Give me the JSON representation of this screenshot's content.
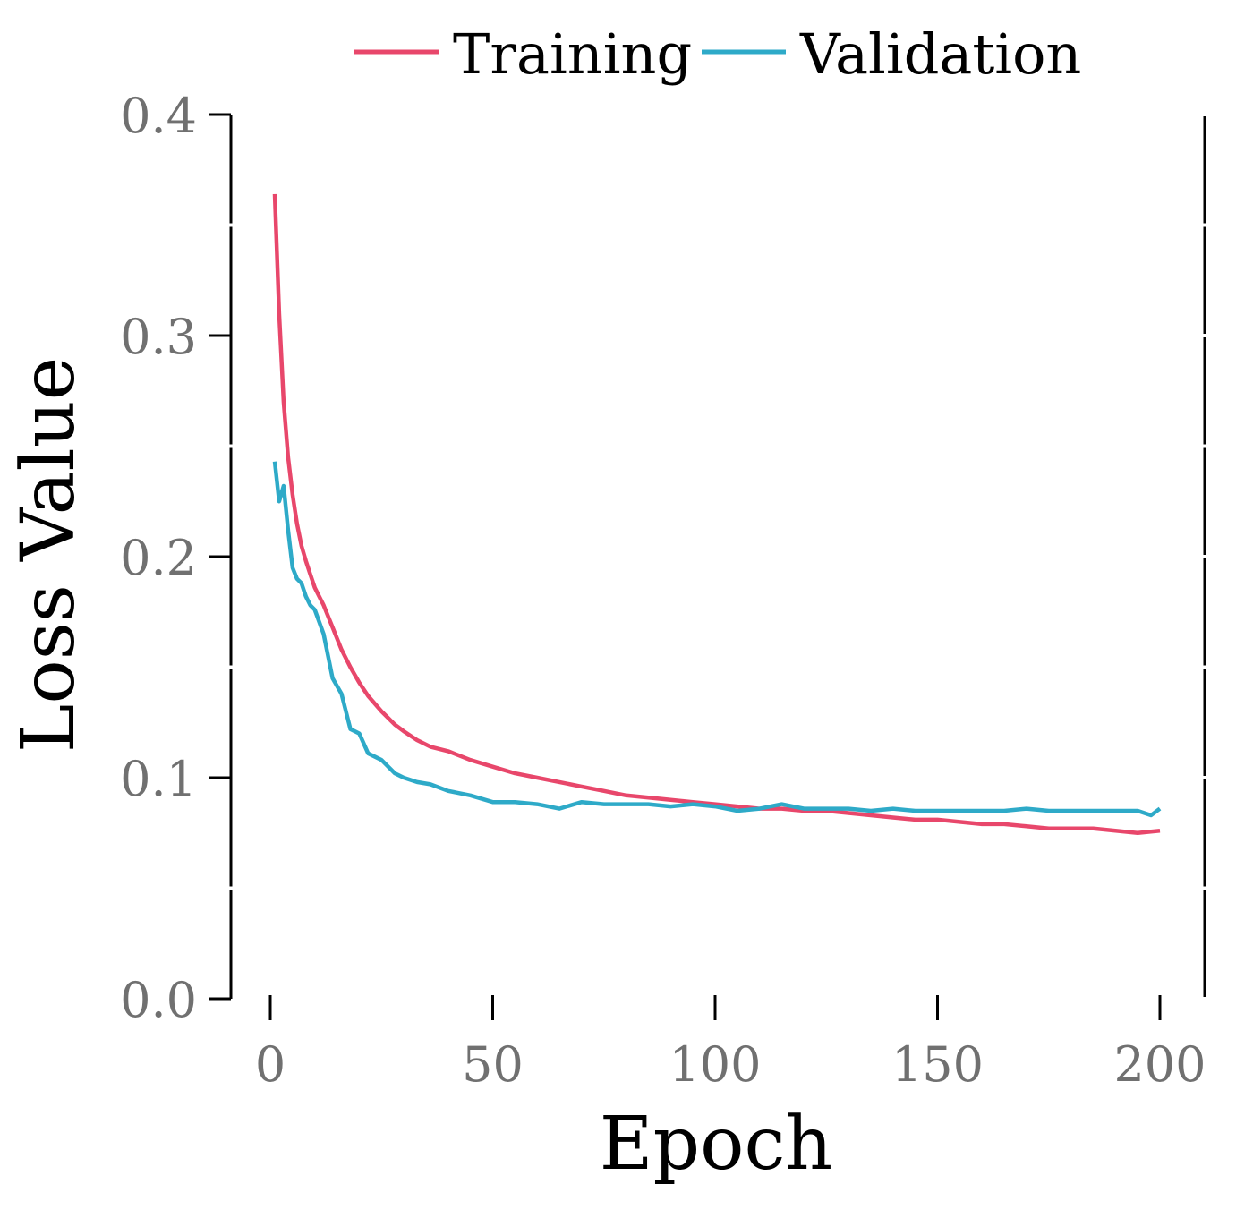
{
  "chart_data": {
    "type": "line",
    "title": "",
    "xlabel": "Epoch",
    "ylabel": "Loss Value",
    "xlim": [
      -8,
      210
    ],
    "ylim": [
      0.0,
      0.4
    ],
    "xticks": [
      0,
      50,
      100,
      150,
      200
    ],
    "xtick_labels": [
      "0",
      "50",
      "100",
      "150",
      "200"
    ],
    "yticks": [
      0.0,
      0.1,
      0.2,
      0.3,
      0.4
    ],
    "ytick_labels": [
      "0.0",
      "0.1",
      "0.2",
      "0.3",
      "0.4"
    ],
    "y_minor_ticks": [
      0.05,
      0.15,
      0.25,
      0.35
    ],
    "grid": false,
    "legend_position": "top-center",
    "series": [
      {
        "name": "Training",
        "color": "#e8476b",
        "x": [
          1,
          2,
          3,
          4,
          5,
          6,
          7,
          8,
          9,
          10,
          12,
          14,
          16,
          18,
          20,
          22,
          25,
          28,
          30,
          33,
          36,
          40,
          45,
          50,
          55,
          60,
          65,
          70,
          75,
          80,
          85,
          90,
          95,
          100,
          105,
          110,
          115,
          120,
          125,
          130,
          135,
          140,
          145,
          150,
          155,
          160,
          165,
          170,
          175,
          180,
          185,
          190,
          195,
          200
        ],
        "values": [
          0.364,
          0.31,
          0.27,
          0.245,
          0.228,
          0.215,
          0.205,
          0.198,
          0.192,
          0.186,
          0.178,
          0.168,
          0.158,
          0.15,
          0.143,
          0.137,
          0.13,
          0.124,
          0.121,
          0.117,
          0.114,
          0.112,
          0.108,
          0.105,
          0.102,
          0.1,
          0.098,
          0.096,
          0.094,
          0.092,
          0.091,
          0.09,
          0.089,
          0.088,
          0.087,
          0.086,
          0.086,
          0.085,
          0.085,
          0.084,
          0.083,
          0.082,
          0.081,
          0.081,
          0.08,
          0.079,
          0.079,
          0.078,
          0.077,
          0.077,
          0.077,
          0.076,
          0.075,
          0.076
        ]
      },
      {
        "name": "Validation",
        "color": "#2eaac8",
        "x": [
          1,
          2,
          3,
          4,
          5,
          6,
          7,
          8,
          9,
          10,
          12,
          14,
          16,
          18,
          20,
          22,
          25,
          28,
          30,
          33,
          36,
          40,
          45,
          50,
          55,
          60,
          65,
          70,
          75,
          80,
          85,
          90,
          95,
          100,
          105,
          110,
          115,
          120,
          125,
          130,
          135,
          140,
          145,
          150,
          155,
          160,
          165,
          170,
          175,
          180,
          185,
          190,
          195,
          198,
          200
        ],
        "values": [
          0.243,
          0.225,
          0.232,
          0.212,
          0.195,
          0.19,
          0.188,
          0.182,
          0.178,
          0.176,
          0.165,
          0.145,
          0.138,
          0.122,
          0.12,
          0.111,
          0.108,
          0.102,
          0.1,
          0.098,
          0.097,
          0.094,
          0.092,
          0.089,
          0.089,
          0.088,
          0.086,
          0.089,
          0.088,
          0.088,
          0.088,
          0.087,
          0.088,
          0.087,
          0.085,
          0.086,
          0.088,
          0.086,
          0.086,
          0.086,
          0.085,
          0.086,
          0.085,
          0.085,
          0.085,
          0.085,
          0.085,
          0.086,
          0.085,
          0.085,
          0.085,
          0.085,
          0.085,
          0.083,
          0.086
        ]
      }
    ]
  }
}
